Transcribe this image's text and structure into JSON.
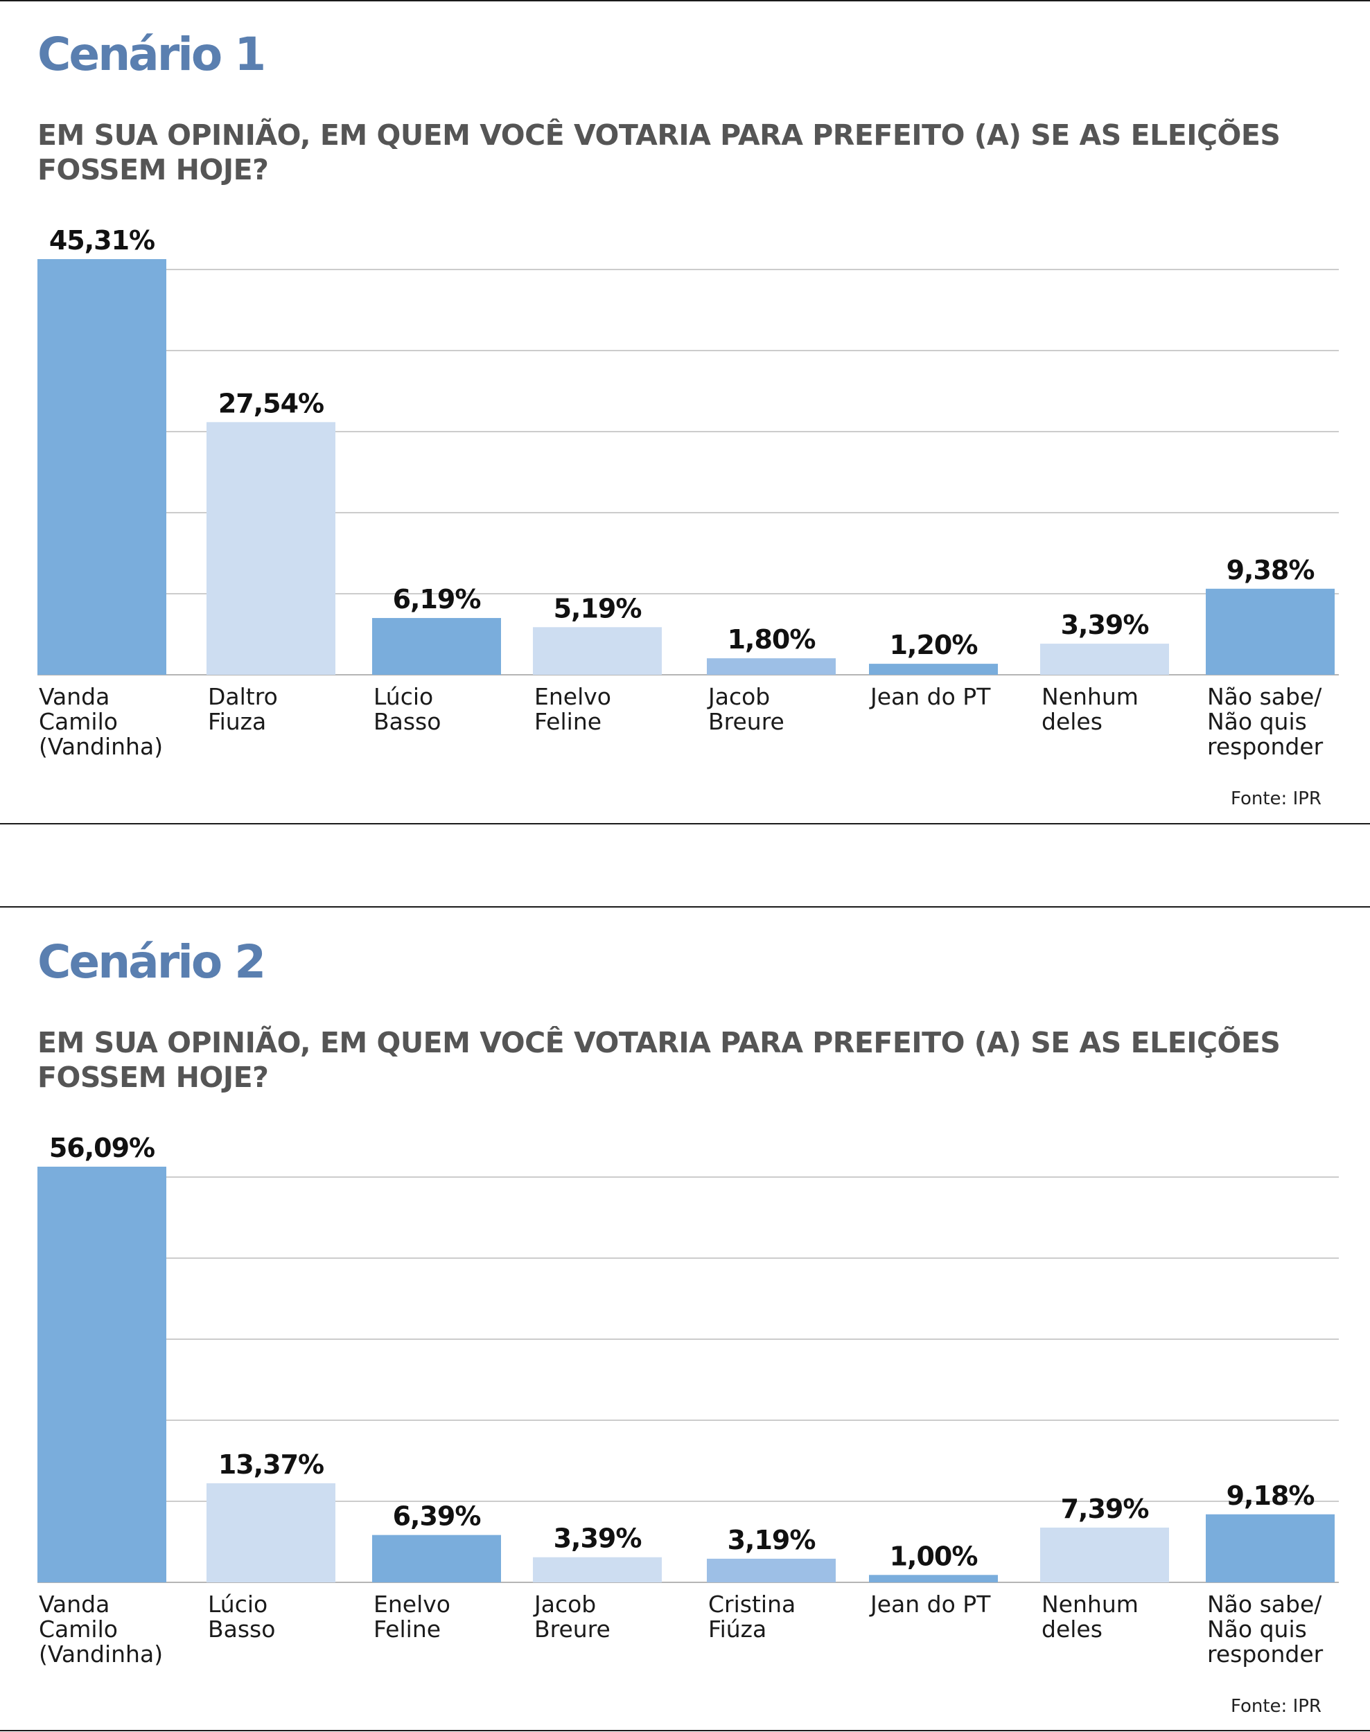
{
  "colors": {
    "dark_bar": "#7aaddc",
    "light_bar": "#cdddf1",
    "mid_bar": "#9dbfe6",
    "title": "#5a7fb0",
    "grid": "#cccccc"
  },
  "chart_data": [
    {
      "type": "bar",
      "title": "Cenário 1",
      "subtitle": "EM SUA OPINIÃO, EM QUEM VOCÊ VOTARIA PARA PREFEITO (A) SE AS ELEIÇÕES FOSSEM HOJE?",
      "source": "Fonte: IPR",
      "categories": [
        [
          "Vanda",
          "Camilo",
          "(Vandinha)"
        ],
        [
          "Daltro",
          "Fiuza"
        ],
        [
          "Lúcio",
          "Basso"
        ],
        [
          "Enelvo",
          "Feline"
        ],
        [
          "Jacob",
          "Breure"
        ],
        [
          "Jean do PT"
        ],
        [
          "Nenhum",
          "deles"
        ],
        [
          "Não sabe/",
          "Não quis",
          "responder"
        ]
      ],
      "values": [
        45.31,
        27.54,
        6.19,
        5.19,
        1.8,
        1.2,
        3.39,
        9.38
      ],
      "value_labels": [
        "45,31%",
        "27,54%",
        "6,19%",
        "5,19%",
        "1,80%",
        "1,20%",
        "3,39%",
        "9,38%"
      ],
      "bar_colors": [
        "#7aaddc",
        "#cdddf1",
        "#7aaddc",
        "#cdddf1",
        "#9dbfe6",
        "#7aaddc",
        "#cdddf1",
        "#7aaddc"
      ],
      "ylim": [
        0,
        45.31
      ],
      "grid": true
    },
    {
      "type": "bar",
      "title": "Cenário 2",
      "subtitle": "EM SUA OPINIÃO, EM QUEM VOCÊ VOTARIA PARA PREFEITO (A) SE AS ELEIÇÕES FOSSEM HOJE?",
      "source": "Fonte: IPR",
      "categories": [
        [
          "Vanda",
          "Camilo",
          "(Vandinha)"
        ],
        [
          "Lúcio",
          "Basso"
        ],
        [
          "Enelvo",
          "Feline"
        ],
        [
          "Jacob",
          "Breure"
        ],
        [
          "Cristina",
          "Fiúza"
        ],
        [
          "Jean do PT"
        ],
        [
          "Nenhum",
          "deles"
        ],
        [
          "Não sabe/",
          "Não quis",
          "responder"
        ]
      ],
      "values": [
        56.09,
        13.37,
        6.39,
        3.39,
        3.19,
        1.0,
        7.39,
        9.18
      ],
      "value_labels": [
        "56,09%",
        "13,37%",
        "6,39%",
        "3,39%",
        "3,19%",
        "1,00%",
        "7,39%",
        "9,18%"
      ],
      "bar_colors": [
        "#7aaddc",
        "#cdddf1",
        "#7aaddc",
        "#cdddf1",
        "#9dbfe6",
        "#7aaddc",
        "#cdddf1",
        "#7aaddc"
      ],
      "ylim": [
        0,
        56.09
      ],
      "grid": true
    }
  ]
}
